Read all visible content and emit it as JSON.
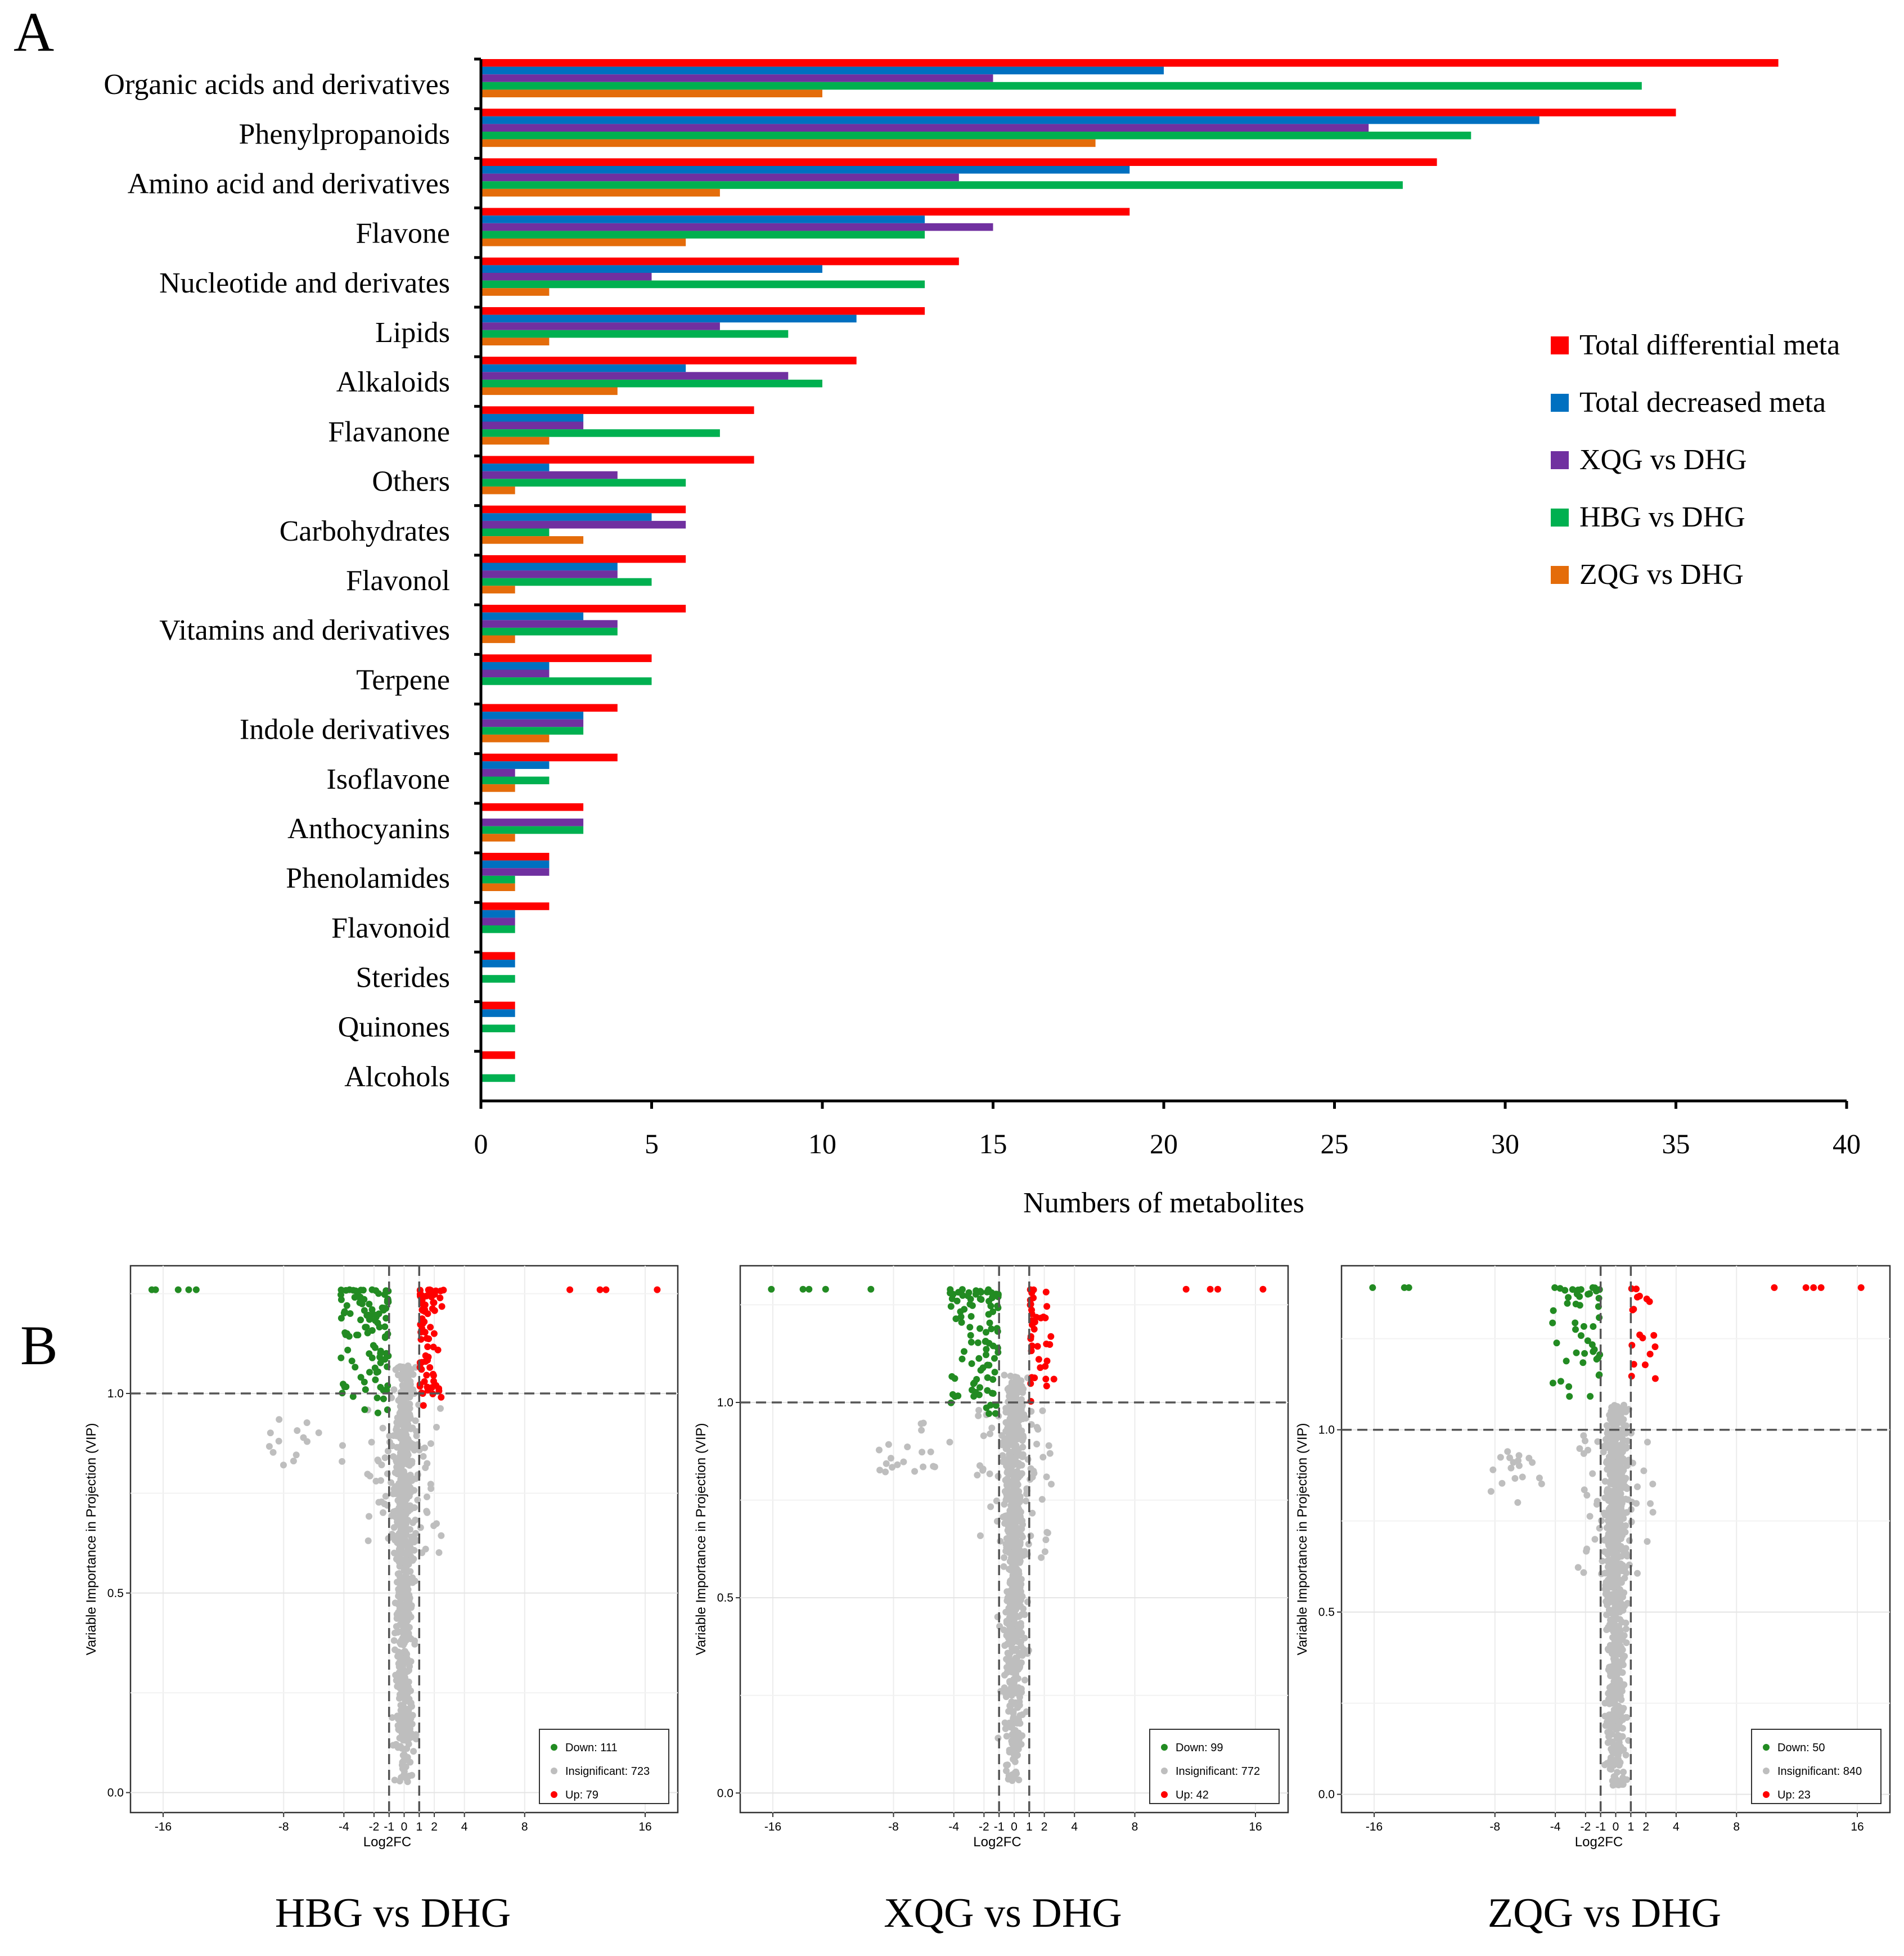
{
  "panel_a_label": "A",
  "panel_b_label": "B",
  "chart_data": [
    {
      "type": "bar",
      "orientation": "horizontal",
      "title": "",
      "xlabel": "Numbers of metabolites",
      "ylabel": "",
      "xlim": [
        0,
        40
      ],
      "xticks": [
        "0",
        "5",
        "10",
        "15",
        "20",
        "25",
        "30",
        "35",
        "40"
      ],
      "legend_position": "right",
      "categories": [
        "Organic acids and derivatives",
        "Phenylpropanoids",
        "Amino acid and derivatives",
        "Flavone",
        "Nucleotide and derivates",
        "Lipids",
        "Alkaloids",
        "Flavanone",
        "Others",
        "Carbohydrates",
        "Flavonol",
        "Vitamins and derivatives",
        "Terpene",
        "Indole derivatives",
        "Isoflavone",
        "Anthocyanins",
        "Phenolamides",
        "Flavonoid",
        "Sterides",
        "Quinones",
        "Alcohols"
      ],
      "series": [
        {
          "name": "Total differential meta",
          "color": "#ff0000",
          "values": [
            38,
            35,
            28,
            19,
            14,
            13,
            11,
            8,
            8,
            6,
            6,
            6,
            5,
            4,
            4,
            3,
            2,
            2,
            1,
            1,
            1
          ]
        },
        {
          "name": "Total decreased meta",
          "color": "#0070c0",
          "values": [
            20,
            31,
            19,
            13,
            10,
            11,
            6,
            3,
            2,
            5,
            4,
            3,
            2,
            3,
            2,
            0,
            2,
            1,
            1,
            1,
            0
          ]
        },
        {
          "name": "XQG vs DHG",
          "color": "#7030a0",
          "values": [
            15,
            26,
            14,
            15,
            5,
            7,
            9,
            3,
            4,
            6,
            4,
            4,
            2,
            3,
            1,
            3,
            2,
            1,
            0,
            0,
            0
          ]
        },
        {
          "name": "HBG vs DHG",
          "color": "#00b050",
          "values": [
            34,
            29,
            27,
            13,
            13,
            9,
            10,
            7,
            6,
            2,
            5,
            4,
            5,
            3,
            2,
            3,
            1,
            1,
            1,
            1,
            1
          ]
        },
        {
          "name": "ZQG vs DHG",
          "color": "#e46c0a",
          "values": [
            10,
            18,
            7,
            6,
            2,
            2,
            4,
            2,
            1,
            3,
            1,
            1,
            0,
            2,
            1,
            1,
            1,
            0,
            0,
            0,
            0
          ]
        }
      ]
    },
    {
      "type": "scatter",
      "title": "HBG vs DHG",
      "xlabel": "Log2FC",
      "ylabel": "Variable Importance in Projection (VIP)",
      "xticks": [
        "-16",
        "-8",
        "-4",
        "-2",
        "-1",
        "0",
        "1",
        "2",
        "4",
        "8",
        "16"
      ],
      "yticks": [
        "0.0",
        "0.5",
        "1.0"
      ],
      "ylim": [
        -0.05,
        1.32
      ],
      "threshold_vip": 1.0,
      "threshold_fc": [
        -1,
        1
      ],
      "legend_position": "bottom-right",
      "legend": [
        {
          "label": "Down: 111",
          "color": "#228b22"
        },
        {
          "label": "Insignificant: 723",
          "color": "#bebebe"
        },
        {
          "label": "Up: 79",
          "color": "#ff0000"
        }
      ]
    },
    {
      "type": "scatter",
      "title": "XQG vs DHG",
      "xlabel": "Log2FC",
      "ylabel": "Variable Importance in Projection (VIP)",
      "xticks": [
        "-16",
        "-8",
        "-4",
        "-2",
        "-1",
        "0",
        "1",
        "2",
        "4",
        "8",
        "16"
      ],
      "yticks": [
        "0.0",
        "0.5",
        "1.0"
      ],
      "ylim": [
        -0.05,
        1.35
      ],
      "threshold_vip": 1.0,
      "threshold_fc": [
        -1,
        1
      ],
      "legend_position": "bottom-right",
      "legend": [
        {
          "label": "Down: 99",
          "color": "#228b22"
        },
        {
          "label": "Insignificant: 772",
          "color": "#bebebe"
        },
        {
          "label": "Up: 42",
          "color": "#ff0000"
        }
      ]
    },
    {
      "type": "scatter",
      "title": "ZQG vs DHG",
      "xlabel": "Log2FC",
      "ylabel": "Variable Importance in Projection (VIP)",
      "xticks": [
        "-16",
        "-8",
        "-4",
        "-2",
        "-1",
        "0",
        "1",
        "2",
        "4",
        "8",
        "16"
      ],
      "yticks": [
        "0.0",
        "0.5",
        "1.0"
      ],
      "ylim": [
        -0.05,
        1.45
      ],
      "threshold_vip": 1.0,
      "threshold_fc": [
        -1,
        1
      ],
      "legend_position": "bottom-right",
      "legend": [
        {
          "label": "Down: 50",
          "color": "#228b22"
        },
        {
          "label": "Insignificant: 840",
          "color": "#bebebe"
        },
        {
          "label": "Up: 23",
          "color": "#ff0000"
        }
      ]
    }
  ]
}
